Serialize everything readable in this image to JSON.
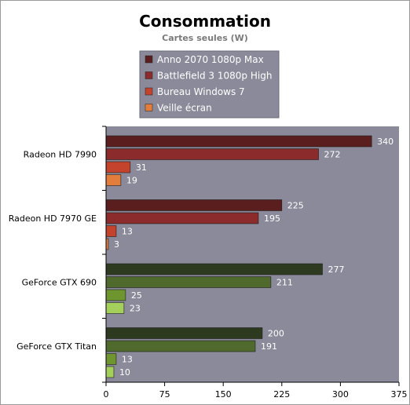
{
  "chart_data": {
    "type": "bar",
    "orientation": "horizontal",
    "title": "Consommation",
    "subtitle": "Cartes seules (W)",
    "xlim": [
      0,
      375
    ],
    "xticks": [
      0,
      75,
      150,
      225,
      300,
      375
    ],
    "grid": false,
    "legend_position": "top-center",
    "categories": [
      "Radeon HD 7990",
      "Radeon HD 7970 GE",
      "GeForce GTX 690",
      "GeForce GTX Titan"
    ],
    "series": [
      {
        "name": "Anno 2070 1080p Max",
        "values": [
          340,
          225,
          277,
          200
        ]
      },
      {
        "name": "Battlefield 3 1080p High",
        "values": [
          272,
          195,
          211,
          191
        ]
      },
      {
        "name": "Bureau Windows 7",
        "values": [
          31,
          13,
          25,
          13
        ]
      },
      {
        "name": "Veille écran",
        "values": [
          19,
          3,
          23,
          10
        ]
      }
    ],
    "colors": {
      "amd": [
        "#5a1e1e",
        "#8b2b2b",
        "#c4432c",
        "#e37d3c"
      ],
      "nvidia": [
        "#2e3a1f",
        "#4f6a2c",
        "#6f952f",
        "#a4cf5a"
      ],
      "legend": [
        "#5a1e1e",
        "#8b2b2b",
        "#c4432c",
        "#e37d3c"
      ],
      "plot_background": "#8a8a9a",
      "legend_background": "#8a8a9a"
    }
  }
}
